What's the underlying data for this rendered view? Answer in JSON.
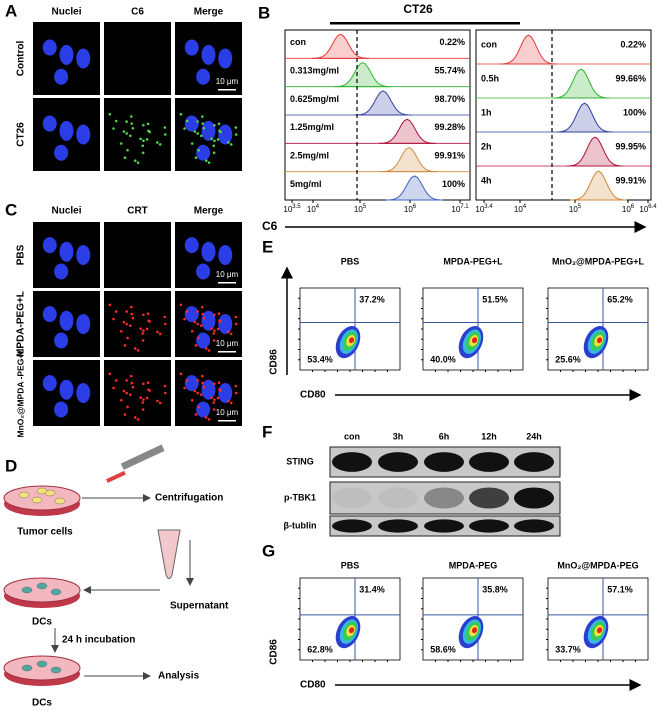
{
  "panels": {
    "A": {
      "label": "A",
      "columns": [
        "Nuclei",
        "C6",
        "Merge"
      ],
      "rows": [
        "Control",
        "CT26"
      ],
      "scale_bar": "10 μm"
    },
    "B": {
      "label": "B",
      "title": "CT26",
      "axis_label": "C6",
      "tick_base": "10",
      "left": {
        "rows": [
          {
            "name": "con",
            "percent": "0.22%"
          },
          {
            "name": "0.313mg/ml",
            "percent": "55.74%"
          },
          {
            "name": "0.625mg/ml",
            "percent": "98.70%"
          },
          {
            "name": "1.25mg/ml",
            "percent": "99.28%"
          },
          {
            "name": "2.5mg/ml",
            "percent": "99.91%"
          },
          {
            "name": "5mg/ml",
            "percent": "100%"
          }
        ],
        "tick_exponents": [
          "3.5",
          "4",
          "5",
          "6",
          "7.1"
        ]
      },
      "right": {
        "rows": [
          {
            "name": "con",
            "percent": "0.22%"
          },
          {
            "name": "0.5h",
            "percent": "99.66%"
          },
          {
            "name": "1h",
            "percent": "100%"
          },
          {
            "name": "2h",
            "percent": "99.95%"
          },
          {
            "name": "4h",
            "percent": "99.91%"
          }
        ],
        "tick_exponents": [
          "3.4",
          "4",
          "5",
          "6",
          "6.4"
        ]
      }
    },
    "C": {
      "label": "C",
      "columns": [
        "Nuclei",
        "CRT",
        "Merge"
      ],
      "rows": [
        "PBS",
        "MPDA-PEG+L",
        "MnO₂@MPDA -PEG+L"
      ],
      "scale_bar": "10 μm"
    },
    "D": {
      "label": "D",
      "steps": {
        "centrifugation": "Centrifugation",
        "tumor_cells": "Tumor cells",
        "supernatant": "Supernatant",
        "dcs_1": "DCs",
        "incubation": "24 h incubation",
        "dcs_2": "DCs",
        "analysis": "Analysis"
      }
    },
    "E": {
      "label": "E",
      "y_label": "CD86",
      "x_label": "CD80",
      "plots": [
        {
          "title": "PBS",
          "upper": "37.2%",
          "lower": "53.4%"
        },
        {
          "title": "MPDA-PEG+L",
          "upper": "51.5%",
          "lower": "40.0%"
        },
        {
          "title": "MnO₂@MPDA-PEG+L",
          "upper": "65.2%",
          "lower": "25.6%"
        }
      ]
    },
    "F": {
      "label": "F",
      "lanes": [
        "con",
        "3h",
        "6h",
        "12h",
        "24h"
      ],
      "proteins": [
        "STING",
        "p-TBK1",
        "β-tublin"
      ]
    },
    "G": {
      "label": "G",
      "y_label": "CD86",
      "x_label": "CD80",
      "plots": [
        {
          "title": "PBS",
          "upper": "31.4%",
          "lower": "62.8%"
        },
        {
          "title": "MPDA-PEG",
          "upper": "35.8%",
          "lower": "58.6%"
        },
        {
          "title": "MnO₂@MPDA-PEG",
          "upper": "57.1%",
          "lower": "33.7%"
        }
      ]
    }
  }
}
